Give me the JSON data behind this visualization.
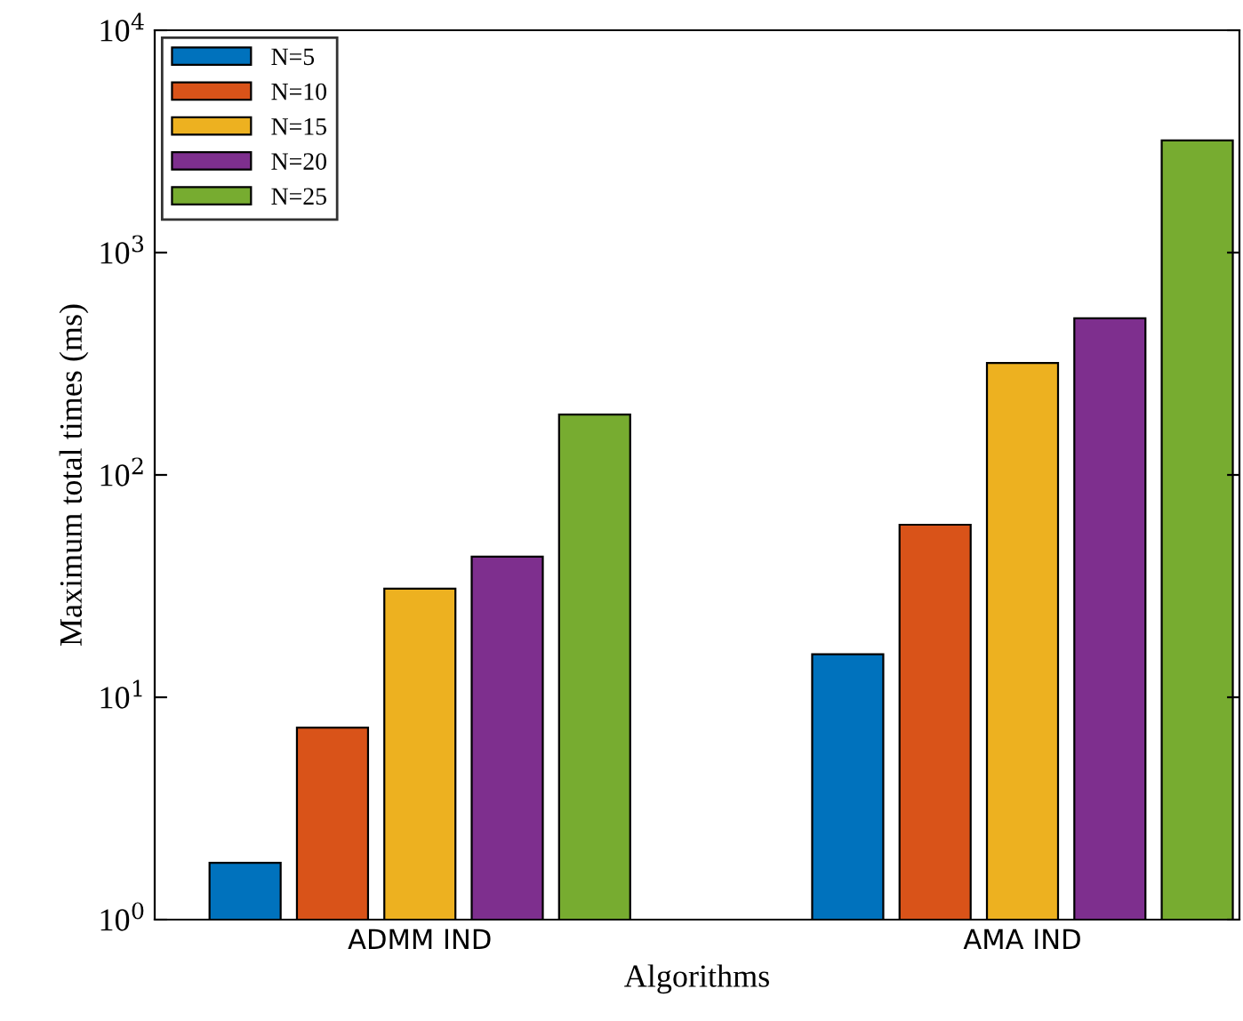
{
  "chart_data": {
    "type": "bar",
    "xlabel": "Algorithms",
    "ylabel": "Maximum total times (ms)",
    "categories": [
      "ADMM IND",
      "AMA IND"
    ],
    "series": [
      {
        "name": "N=5",
        "color": "#0072bd",
        "values": [
          1.8,
          15.6
        ]
      },
      {
        "name": "N=10",
        "color": "#d95319",
        "values": [
          7.3,
          59.7
        ]
      },
      {
        "name": "N=15",
        "color": "#edb120",
        "values": [
          30.8,
          319
        ]
      },
      {
        "name": "N=20",
        "color": "#7e2f8e",
        "values": [
          42.9,
          506
        ]
      },
      {
        "name": "N=25",
        "color": "#77ac30",
        "values": [
          187,
          3192
        ]
      }
    ],
    "log": "y",
    "ylim": [
      1,
      10000
    ],
    "yticks": [
      {
        "value": 1,
        "label": "10$^{0}$"
      },
      {
        "value": 10,
        "label": "10$^{1}$"
      },
      {
        "value": 100,
        "label": "10$^{2}$"
      },
      {
        "value": 1000,
        "label": "10$^{3}$"
      },
      {
        "value": 10000,
        "label": "10$^{4}$"
      }
    ],
    "grid": false,
    "legend": "top left"
  }
}
